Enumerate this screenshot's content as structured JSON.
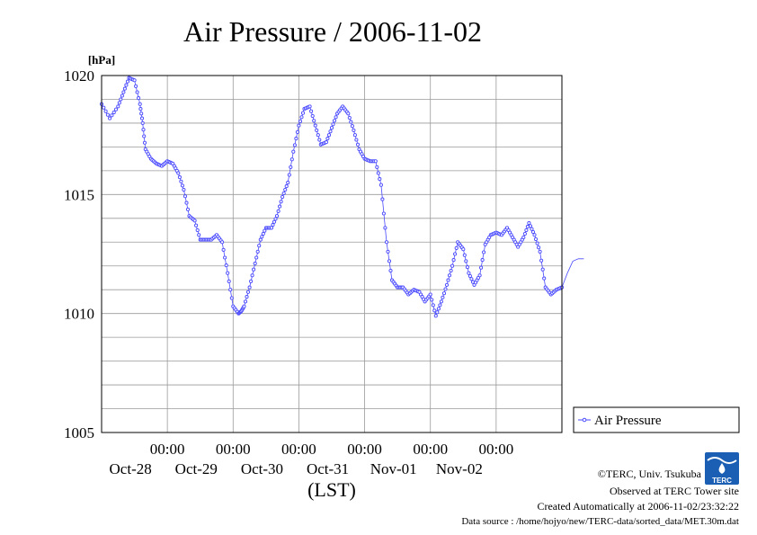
{
  "chart_data": {
    "type": "line",
    "title": "Air Pressure / 2006-11-02",
    "ylabel": "[hPa]",
    "xlabel": "(LST)",
    "ylim": [
      1005,
      1020
    ],
    "yticks": [
      1005,
      1010,
      1015,
      1020
    ],
    "x_start": "2006-10-27 00:00",
    "x_end": "2006-11-03 00:00",
    "xticks": [
      {
        "time": "00:00",
        "date": "Oct-28"
      },
      {
        "time": "00:00",
        "date": "Oct-29"
      },
      {
        "time": "00:00",
        "date": "Oct-30"
      },
      {
        "time": "00:00",
        "date": "Oct-31"
      },
      {
        "time": "00:00",
        "date": "Nov-01"
      },
      {
        "time": "00:00",
        "date": "Nov-02"
      }
    ],
    "grid": true,
    "legend_position": "right",
    "series": [
      {
        "name": "Air Pressure",
        "color": "#4a4aff",
        "marker": "circle",
        "points": [
          [
            "2006-10-27 00:00",
            1018.8
          ],
          [
            "2006-10-27 03:00",
            1018.2
          ],
          [
            "2006-10-27 06:00",
            1018.7
          ],
          [
            "2006-10-27 08:00",
            1019.3
          ],
          [
            "2006-10-27 10:00",
            1019.9
          ],
          [
            "2006-10-27 12:00",
            1019.8
          ],
          [
            "2006-10-27 14:00",
            1018.8
          ],
          [
            "2006-10-27 15:00",
            1018.0
          ],
          [
            "2006-10-27 16:00",
            1016.9
          ],
          [
            "2006-10-27 18:00",
            1016.5
          ],
          [
            "2006-10-27 20:00",
            1016.3
          ],
          [
            "2006-10-27 22:00",
            1016.2
          ],
          [
            "2006-10-28 00:00",
            1016.4
          ],
          [
            "2006-10-28 02:00",
            1016.3
          ],
          [
            "2006-10-28 04:00",
            1015.9
          ],
          [
            "2006-10-28 06:00",
            1015.2
          ],
          [
            "2006-10-28 08:00",
            1014.1
          ],
          [
            "2006-10-28 10:00",
            1013.9
          ],
          [
            "2006-10-28 12:00",
            1013.1
          ],
          [
            "2006-10-28 14:00",
            1013.1
          ],
          [
            "2006-10-28 16:00",
            1013.1
          ],
          [
            "2006-10-28 18:00",
            1013.3
          ],
          [
            "2006-10-28 20:00",
            1013.0
          ],
          [
            "2006-10-28 22:00",
            1011.7
          ],
          [
            "2006-10-29 00:00",
            1010.3
          ],
          [
            "2006-10-29 02:00",
            1010.0
          ],
          [
            "2006-10-29 03:00",
            1010.1
          ],
          [
            "2006-10-29 04:00",
            1010.3
          ],
          [
            "2006-10-29 06:00",
            1011.1
          ],
          [
            "2006-10-29 08:00",
            1012.1
          ],
          [
            "2006-10-29 10:00",
            1013.1
          ],
          [
            "2006-10-29 12:00",
            1013.6
          ],
          [
            "2006-10-29 14:00",
            1013.6
          ],
          [
            "2006-10-29 16:00",
            1014.1
          ],
          [
            "2006-10-29 18:00",
            1014.9
          ],
          [
            "2006-10-29 20:00",
            1015.5
          ],
          [
            "2006-10-29 22:00",
            1016.8
          ],
          [
            "2006-10-30 00:00",
            1017.9
          ],
          [
            "2006-10-30 02:00",
            1018.6
          ],
          [
            "2006-10-30 04:00",
            1018.7
          ],
          [
            "2006-10-30 06:00",
            1017.9
          ],
          [
            "2006-10-30 08:00",
            1017.1
          ],
          [
            "2006-10-30 10:00",
            1017.2
          ],
          [
            "2006-10-30 12:00",
            1017.8
          ],
          [
            "2006-10-30 14:00",
            1018.4
          ],
          [
            "2006-10-30 16:00",
            1018.7
          ],
          [
            "2006-10-30 18:00",
            1018.4
          ],
          [
            "2006-10-30 20:00",
            1017.7
          ],
          [
            "2006-10-30 22:00",
            1016.9
          ],
          [
            "2006-10-31 00:00",
            1016.5
          ],
          [
            "2006-10-31 02:00",
            1016.4
          ],
          [
            "2006-10-31 04:00",
            1016.4
          ],
          [
            "2006-10-31 06:00",
            1015.4
          ],
          [
            "2006-10-31 08:00",
            1013.0
          ],
          [
            "2006-10-31 10:00",
            1011.4
          ],
          [
            "2006-10-31 12:00",
            1011.1
          ],
          [
            "2006-10-31 14:00",
            1011.1
          ],
          [
            "2006-10-31 16:00",
            1010.8
          ],
          [
            "2006-10-31 18:00",
            1011.0
          ],
          [
            "2006-10-31 20:00",
            1010.9
          ],
          [
            "2006-10-31 22:00",
            1010.5
          ],
          [
            "2006-11-01 00:00",
            1010.8
          ],
          [
            "2006-11-01 02:00",
            1009.9
          ],
          [
            "2006-11-01 04:00",
            1010.5
          ],
          [
            "2006-11-01 06:00",
            1011.2
          ],
          [
            "2006-11-01 08:00",
            1012.0
          ],
          [
            "2006-11-01 10:00",
            1013.0
          ],
          [
            "2006-11-01 12:00",
            1012.7
          ],
          [
            "2006-11-01 14:00",
            1011.7
          ],
          [
            "2006-11-01 16:00",
            1011.2
          ],
          [
            "2006-11-01 18:00",
            1011.6
          ],
          [
            "2006-11-01 20:00",
            1012.9
          ],
          [
            "2006-11-01 22:00",
            1013.3
          ],
          [
            "2006-11-02 00:00",
            1013.4
          ],
          [
            "2006-11-02 02:00",
            1013.3
          ],
          [
            "2006-11-02 04:00",
            1013.6
          ],
          [
            "2006-11-02 06:00",
            1013.2
          ],
          [
            "2006-11-02 08:00",
            1012.8
          ],
          [
            "2006-11-02 10:00",
            1013.2
          ],
          [
            "2006-11-02 12:00",
            1013.8
          ],
          [
            "2006-11-02 14:00",
            1013.3
          ],
          [
            "2006-11-02 16:00",
            1012.6
          ],
          [
            "2006-11-02 18:00",
            1011.1
          ],
          [
            "2006-11-02 20:00",
            1010.8
          ],
          [
            "2006-11-02 22:00",
            1011.0
          ],
          [
            "2006-11-03 00:00",
            1011.1
          ],
          [
            "2006-11-03 02:00",
            1011.7
          ],
          [
            "2006-11-03 04:00",
            1012.2
          ],
          [
            "2006-11-03 06:00",
            1012.3
          ],
          [
            "2006-11-03 08:00",
            1012.3
          ]
        ]
      }
    ]
  },
  "footer": {
    "copyright": "©TERC, Univ. Tsukuba",
    "observed": "Observed at TERC Tower site",
    "created": "Created Automatically at 2006-11-02/23:32:22",
    "source": "Data source : /home/hojyo/new/TERC-data/sorted_data/MET.30m.dat"
  },
  "logo": {
    "text": "TERC",
    "color": "#1a5fb4"
  }
}
